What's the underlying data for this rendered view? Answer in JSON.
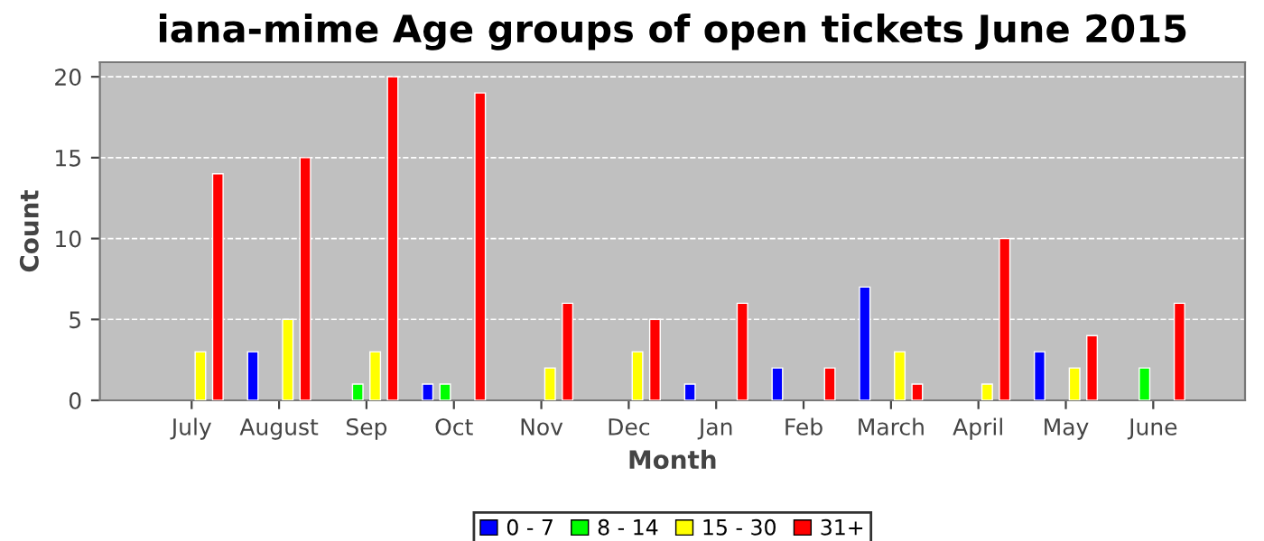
{
  "chart_data": {
    "type": "bar",
    "title": "iana-mime Age groups of open tickets June 2015",
    "xlabel": "Month",
    "ylabel": "Count",
    "categories": [
      "July",
      "August",
      "Sep",
      "Oct",
      "Nov",
      "Dec",
      "Jan",
      "Feb",
      "March",
      "April",
      "May",
      "June"
    ],
    "series": [
      {
        "name": "0 - 7",
        "color": "#0000ff",
        "values": [
          0,
          3,
          0,
          1,
          0,
          0,
          1,
          2,
          7,
          0,
          3,
          0
        ]
      },
      {
        "name": "8 - 14",
        "color": "#00ff00",
        "values": [
          0,
          0,
          1,
          1,
          0,
          0,
          0,
          0,
          0,
          0,
          0,
          2
        ]
      },
      {
        "name": "15 - 30",
        "color": "#ffff00",
        "values": [
          3,
          5,
          3,
          0,
          2,
          3,
          0,
          0,
          3,
          1,
          2,
          0
        ]
      },
      {
        "name": "31+",
        "color": "#ff0000",
        "values": [
          14,
          15,
          20,
          19,
          6,
          5,
          6,
          2,
          1,
          10,
          4,
          6
        ]
      }
    ],
    "ylim": [
      0,
      20.9
    ],
    "yticks": [
      0,
      5,
      10,
      15,
      20
    ],
    "grid": "y",
    "legend": "bottom"
  }
}
